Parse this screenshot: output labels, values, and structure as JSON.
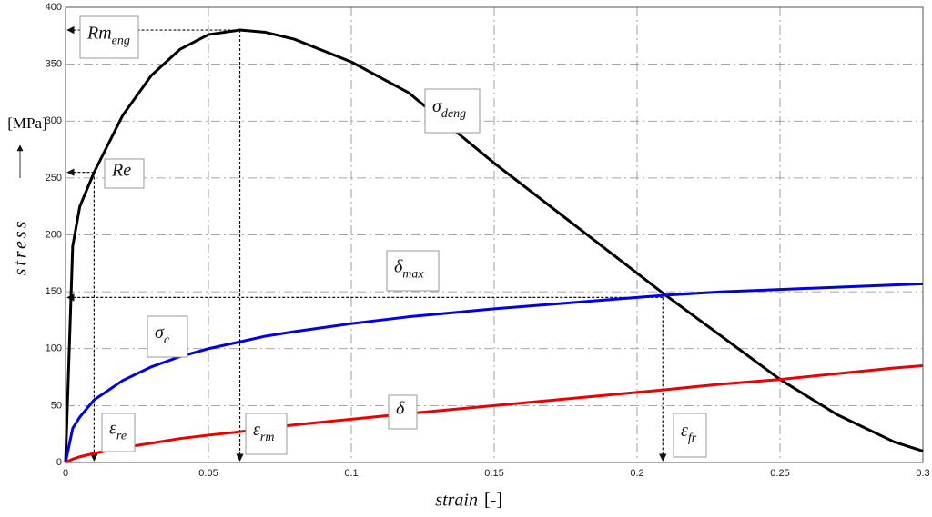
{
  "chart_data": {
    "type": "line",
    "x_label": "strain",
    "x_unit": "[-]",
    "y_label": "stress",
    "y_unit": "[MPa]",
    "x": [
      0,
      0.0025,
      0.005,
      0.01,
      0.02,
      0.03,
      0.04,
      0.05,
      0.061,
      0.07,
      0.08,
      0.1,
      0.12,
      0.15,
      0.18,
      0.21,
      0.23,
      0.25,
      0.27,
      0.29,
      0.3
    ],
    "series": [
      {
        "name": "σ",
        "name_sub": "deng",
        "color": "#000000",
        "values": [
          0,
          190,
          225,
          255,
          305,
          340,
          363,
          376,
          380,
          378,
          372,
          352,
          325,
          263,
          205,
          147,
          110,
          73,
          42,
          18,
          10
        ]
      },
      {
        "name": "σ",
        "name_sub": "c",
        "color": "#0000ee",
        "values": [
          0,
          30,
          40,
          55,
          72,
          84,
          93,
          100,
          106,
          111,
          115,
          122,
          128,
          135,
          141,
          147,
          150,
          152,
          154,
          156,
          157
        ]
      },
      {
        "name": "δ",
        "name_sub": "",
        "color": "#ee0000",
        "values": [
          0,
          3,
          5,
          8,
          13,
          17,
          21,
          24,
          27,
          30,
          33,
          38,
          43,
          50,
          57,
          64,
          69,
          73,
          78,
          83,
          85
        ]
      }
    ],
    "reference_points": [
      {
        "x": 0.061,
        "y": 380,
        "y_text": "Rm",
        "y_sub": "eng",
        "x_text": "ε",
        "x_sub": "rm"
      },
      {
        "x": 0.01,
        "y": 255,
        "y_text": "Re",
        "y_sub": "",
        "x_text": "ε",
        "x_sub": "re"
      },
      {
        "x": 0.209,
        "y": 145,
        "y_text": "δ",
        "y_sub": "max",
        "x_text": "ε",
        "x_sub": "fr"
      }
    ],
    "xlim": [
      0,
      0.3
    ],
    "xticks": [
      0,
      0.05,
      0.1,
      0.15,
      0.2,
      0.25,
      0.3
    ],
    "ylim": [
      0,
      400
    ],
    "yticks": [
      0,
      50,
      100,
      150,
      200,
      250,
      300,
      350,
      400
    ],
    "grid": true
  }
}
